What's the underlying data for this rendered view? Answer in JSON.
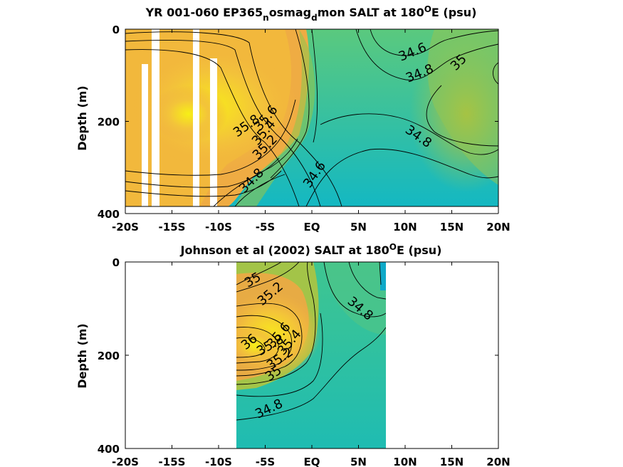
{
  "chart_data": [
    {
      "type": "heatmap",
      "title": "YR 001-060 EP365_n osmag_d mon SALT at 180°E (psu)",
      "title_parts": [
        "YR 001-060 EP365",
        "n",
        "osmag",
        "d",
        "mon SALT at 180",
        "O",
        "E (psu)"
      ],
      "xlabel": "",
      "ylabel": "Depth (m)",
      "x_ticks": [
        "-20S",
        "-15S",
        "-10S",
        "-5S",
        "EQ",
        "5N",
        "10N",
        "15N",
        "20N"
      ],
      "y_ticks": [
        "0",
        "200",
        "400"
      ],
      "xlim": [
        -20,
        20
      ],
      "ylim": [
        0,
        400
      ],
      "data_extent_x": [
        -20,
        20
      ],
      "data_extent_y": [
        0,
        380
      ],
      "missing_columns_lat": [
        [
          -18.5,
          -18.2
        ],
        [
          -16.5,
          -16.0
        ],
        [
          -13.5,
          -13.2
        ],
        [
          -11.5,
          -11.2
        ]
      ],
      "colormap": [
        "#12b5c4",
        "#2ec0a8",
        "#6dcb6f",
        "#b3c438",
        "#f2b63a",
        "#f8e01c"
      ],
      "contour_labels": [
        "34.6",
        "34.8",
        "35",
        "35.8",
        "35.6",
        "35.4",
        "35.2",
        "34.8",
        "34.6",
        "34.8"
      ],
      "salinity_range": [
        34.4,
        36.0
      ]
    },
    {
      "type": "heatmap",
      "title": "Johnson et al (2002) SALT at 180°E (psu)",
      "title_parts": [
        "Johnson et al (2002) SALT at 180",
        "O",
        "E (psu)"
      ],
      "xlabel": "",
      "ylabel": "Depth (m)",
      "x_ticks": [
        "-20S",
        "-15S",
        "-10S",
        "-5S",
        "EQ",
        "5N",
        "10N",
        "15N",
        "20N"
      ],
      "y_ticks": [
        "0",
        "200",
        "400"
      ],
      "xlim": [
        -20,
        20
      ],
      "ylim": [
        0,
        400
      ],
      "data_extent_x": [
        -8,
        8
      ],
      "data_extent_y": [
        0,
        400
      ],
      "contour_labels": [
        "35",
        "35.2",
        "34.8",
        "36",
        "35.8",
        "35.6",
        "35.4",
        "35.2",
        "35",
        "34.8"
      ],
      "salinity_range": [
        34.4,
        36.0
      ]
    }
  ]
}
